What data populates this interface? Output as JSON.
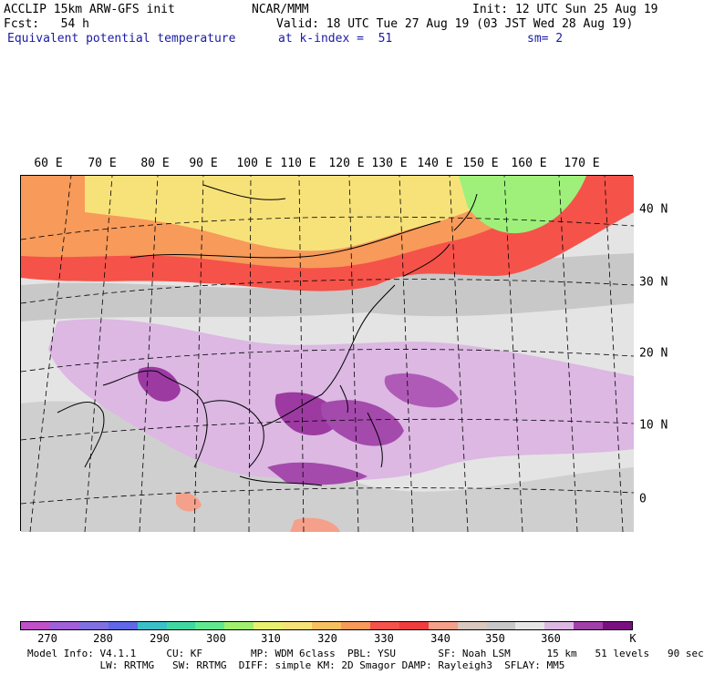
{
  "header": {
    "model_line": "ACCLIP 15km ARW-GFS init",
    "center": "NCAR/MMM",
    "init": "Init: 12 UTC Sun 25 Aug 19",
    "fcst": "Fcst:   54 h",
    "valid": "Valid: 18 UTC Tue 27 Aug 19 (03 JST Wed 28 Aug 19)",
    "field": "Equivalent potential temperature",
    "level": "at k-index =  51",
    "smooth": "sm= 2"
  },
  "map": {
    "lon_labels": [
      "60 E",
      "70 E",
      "80 E",
      "90 E",
      "100 E",
      "110 E",
      "120 E",
      "130 E",
      "140 E",
      "150 E",
      "160 E",
      "170 E"
    ],
    "lat_labels": [
      "40 N",
      "30 N",
      "20 N",
      "10 N",
      "0"
    ],
    "regions": [
      {
        "name": "tropical-band",
        "color": "#e6e6e6"
      },
      {
        "name": "gray-350",
        "color": "#c8c8c8"
      },
      {
        "name": "lavender-360",
        "color": "#dcb8e3"
      },
      {
        "name": "purple-365",
        "color": "#9c3aa2"
      },
      {
        "name": "red-330",
        "color": "#f5524a"
      },
      {
        "name": "orange-320",
        "color": "#f79a5a"
      },
      {
        "name": "yellow-310",
        "color": "#f7e27a"
      },
      {
        "name": "green-300",
        "color": "#9ef07a"
      }
    ]
  },
  "colorbar": {
    "colors": [
      "#c050c8",
      "#a060d8",
      "#8070e0",
      "#6068e8",
      "#3cc0c8",
      "#40d8a0",
      "#60e890",
      "#a0f070",
      "#e8f070",
      "#f7e27a",
      "#f7c060",
      "#f79a5a",
      "#f5524a",
      "#f03c3c",
      "#f5a08a",
      "#d8c8c0",
      "#c8c8c8",
      "#e6e6e6",
      "#dcb8e3",
      "#a040a8",
      "#7a1080"
    ],
    "tick_labels": [
      "270",
      "280",
      "290",
      "300",
      "310",
      "320",
      "330",
      "340",
      "350",
      "360"
    ],
    "unit": "K"
  },
  "footer": {
    "line1": "Model Info: V4.1.1     CU: KF        MP: WDM 6class  PBL: YSU       SF: Noah LSM      15 km   51 levels   90 sec",
    "line2": "            LW: RRTMG   SW: RRTMG  DIFF: simple KM: 2D Smagor DAMP: Rayleigh3  SFLAY: MM5"
  }
}
